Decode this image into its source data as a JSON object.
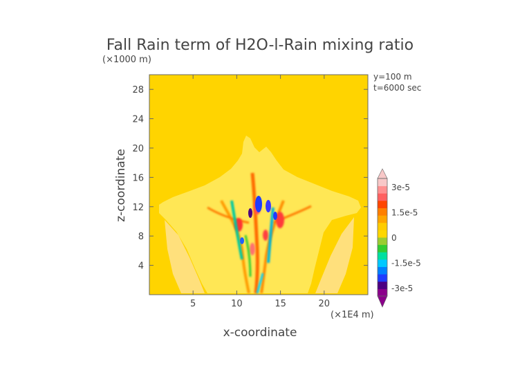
{
  "chart_data": {
    "type": "heatmap",
    "title": "Fall Rain term of H2O-l-Rain mixing ratio",
    "xlabel": "x-coordinate",
    "ylabel": "z-coordinate",
    "x_unit": "(×1E4 m)",
    "y_unit": "(×1000 m)",
    "annotations": [
      "y=100 m",
      "t=6000 sec"
    ],
    "xlim": [
      0,
      25
    ],
    "ylim": [
      0,
      30
    ],
    "x_ticks": [
      {
        "v": 5,
        "label": "5"
      },
      {
        "v": 10,
        "label": "10"
      },
      {
        "v": 15,
        "label": "15"
      },
      {
        "v": 20,
        "label": "20"
      }
    ],
    "y_ticks": [
      {
        "v": 4,
        "label": "4"
      },
      {
        "v": 8,
        "label": "8"
      },
      {
        "v": 12,
        "label": "12"
      },
      {
        "v": 16,
        "label": "16"
      },
      {
        "v": 20,
        "label": "20"
      },
      {
        "v": 24,
        "label": "24"
      },
      {
        "v": 28,
        "label": "28"
      }
    ],
    "colorbar": {
      "range": [
        -3.5e-05,
        3.5e-05
      ],
      "labels": [
        {
          "v": 3e-05,
          "label": "3e-5"
        },
        {
          "v": 1.5e-05,
          "label": "1.5e-5"
        },
        {
          "v": 0,
          "label": "0"
        },
        {
          "v": -1.5e-05,
          "label": "-1.5e-5"
        },
        {
          "v": -3e-05,
          "label": "-3e-5"
        }
      ],
      "colors": [
        "#8b008b",
        "#4b0082",
        "#1e3cff",
        "#0080ff",
        "#00c8ff",
        "#00e0a0",
        "#32cd32",
        "#9acd32",
        "#ffd700",
        "#ffcc00",
        "#ffa500",
        "#ff7f00",
        "#ff4500",
        "#ff6060",
        "#ff9090",
        "#f8c8c8"
      ]
    },
    "field_regions": [
      {
        "kind": "background",
        "value": 0,
        "color": "#ffd400"
      },
      {
        "kind": "anvil-cloud",
        "value": 1e-06,
        "color": "#ffe24a"
      },
      {
        "kind": "positive-streaks",
        "value": 1.2e-05,
        "color": "#ff8c00"
      },
      {
        "kind": "negative-core",
        "value": -2.5e-05,
        "color": "#1e3cff"
      }
    ]
  }
}
